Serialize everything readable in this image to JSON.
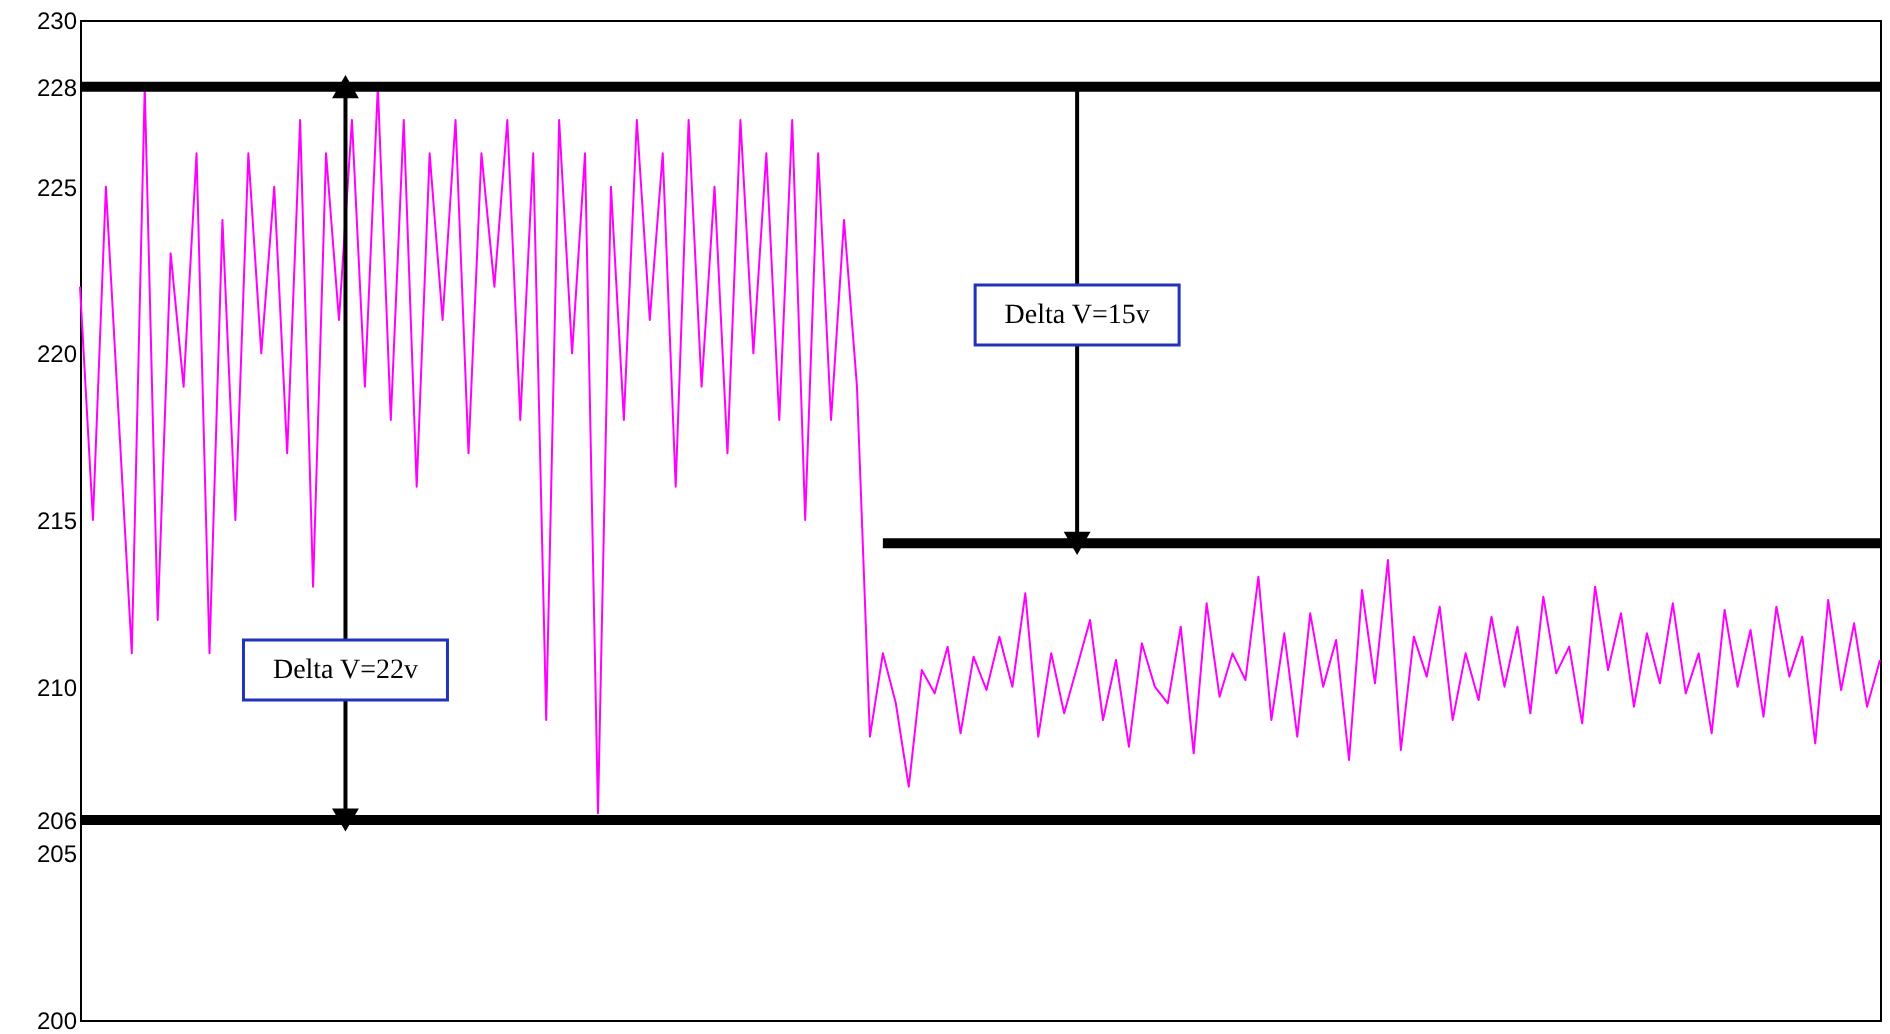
{
  "chart_data": {
    "type": "line",
    "categories": [
      null,
      null,
      null,
      null,
      null,
      null,
      null,
      null,
      null,
      null,
      null,
      null,
      null,
      null,
      null,
      null,
      null,
      null,
      null,
      null,
      null,
      null,
      null,
      null,
      null,
      null,
      null,
      null,
      null,
      null,
      null,
      null,
      null,
      null,
      null,
      null,
      null,
      null,
      null,
      null,
      null,
      null,
      null,
      null,
      null,
      null,
      null,
      null,
      null,
      null,
      null,
      null,
      null,
      null,
      null,
      null,
      null,
      null,
      null,
      null,
      null,
      null,
      null,
      null,
      null,
      null,
      null,
      null,
      null,
      null,
      null,
      null,
      null,
      null,
      null,
      null,
      null,
      null,
      null,
      null,
      null,
      null,
      null,
      null,
      null,
      null,
      null,
      null,
      null,
      null,
      null,
      null,
      null,
      null,
      null,
      null,
      null,
      null,
      null,
      null,
      null,
      null,
      null,
      null,
      null,
      null,
      null,
      null,
      null,
      null,
      null,
      null,
      null,
      null,
      null,
      null,
      null,
      null,
      null,
      null,
      null,
      null,
      null,
      null,
      null,
      null,
      null,
      null,
      null,
      null,
      null,
      null,
      null,
      null,
      null,
      null,
      null,
      null,
      null,
      null
    ],
    "series": [
      {
        "color": "#ff00ff",
        "values": [
          222,
          215,
          225,
          218,
          211,
          228,
          212,
          223,
          219,
          226,
          211,
          224,
          215,
          226,
          220,
          225,
          217,
          227,
          213,
          226,
          221,
          227,
          219,
          228,
          218,
          227,
          216,
          226,
          221,
          227,
          217,
          226,
          222,
          227,
          218,
          226,
          209,
          227,
          220,
          226,
          206.2,
          225,
          218,
          227,
          221,
          226,
          216,
          227,
          219,
          225,
          217,
          227,
          220,
          226,
          218,
          227,
          215,
          226,
          218,
          224,
          219,
          208.5,
          211,
          209.5,
          207,
          210.5,
          209.8,
          211.2,
          208.6,
          210.9,
          209.9,
          211.5,
          210,
          212.8,
          208.5,
          211,
          209.2,
          210.6,
          212,
          209,
          210.8,
          208.2,
          211.3,
          210,
          209.5,
          211.8,
          208,
          212.5,
          209.7,
          211,
          210.2,
          213.3,
          209,
          211.6,
          208.5,
          212.2,
          210,
          211.4,
          207.8,
          212.9,
          210.1,
          213.8,
          208.1,
          211.5,
          210.3,
          212.4,
          209,
          211,
          209.6,
          212.1,
          210,
          211.8,
          209.2,
          212.7,
          210.4,
          211.2,
          208.9,
          213,
          210.5,
          212.2,
          209.4,
          211.6,
          210.1,
          212.5,
          209.8,
          211,
          208.6,
          212.3,
          210,
          211.7,
          209.1,
          212.4,
          210.3,
          211.5,
          208.3,
          212.6,
          209.9,
          211.9,
          209.4,
          210.8
        ]
      },
      {
        "color": "#000000",
        "values": [
          null,
          null,
          null,
          null,
          null,
          null,
          null,
          null,
          null,
          null,
          null,
          null,
          null,
          null,
          null,
          null,
          null,
          null,
          null,
          null,
          null,
          null,
          null,
          null,
          null,
          null,
          null,
          null,
          null,
          null,
          null,
          null,
          null,
          null,
          null,
          null,
          null,
          null,
          null,
          null,
          null,
          null,
          null,
          null,
          null,
          null,
          null,
          null,
          null,
          null,
          null,
          null,
          null,
          null,
          null,
          null,
          null,
          null,
          null,
          null,
          null,
          null,
          214.3,
          214.3,
          214.3,
          214.3,
          214.3,
          214.3,
          214.3,
          214.3,
          214.3,
          214.3,
          214.3,
          214.3,
          214.3,
          214.3,
          214.3,
          214.3,
          214.3,
          214.3,
          214.3,
          214.3,
          214.3,
          214.3,
          214.3,
          214.3,
          214.3,
          214.3,
          214.3,
          214.3,
          214.3,
          214.3,
          214.3,
          214.3,
          214.3,
          214.3,
          214.3,
          214.3,
          214.3,
          214.3,
          214.3,
          214.3,
          214.3,
          214.3,
          214.3,
          214.3,
          214.3,
          214.3,
          214.3,
          214.3,
          214.3,
          214.3,
          214.3,
          214.3,
          214.3,
          214.3,
          214.3,
          214.3,
          214.3,
          214.3,
          214.3,
          214.3,
          214.3,
          214.3,
          214.3,
          214.3,
          214.3,
          214.3,
          214.3,
          214.3,
          214.3,
          214.3,
          214.3,
          214.3,
          214.3,
          214.3,
          214.3,
          214.3,
          214.3,
          214.3
        ]
      }
    ],
    "ylim": [
      200,
      230
    ],
    "yticks": [
      200,
      205,
      206,
      210,
      215,
      220,
      225,
      228,
      230
    ],
    "ref_lines": [
      {
        "axis": "y",
        "value": 228,
        "color": "#000000"
      },
      {
        "axis": "y",
        "value": 206,
        "color": "#000000"
      }
    ],
    "annotations": [
      "Delta V=22v",
      "Delta V=15v"
    ],
    "grid": false,
    "tick_labels": "y"
  }
}
